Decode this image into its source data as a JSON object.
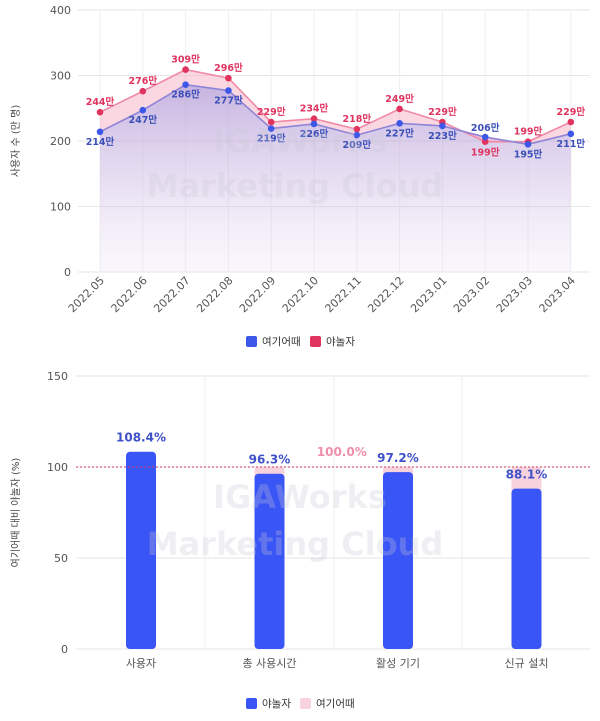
{
  "watermark": {
    "line1": "IGAWorks",
    "line2": "Marketing Cloud"
  },
  "chart_data": [
    {
      "type": "line",
      "ylabel": "사용자 수 (만 명)",
      "ylim": [
        0,
        400
      ],
      "yticks": [
        0,
        100,
        200,
        300,
        400
      ],
      "categories": [
        "2022.05",
        "2022.06",
        "2022.07",
        "2022.08",
        "2022.09",
        "2022.10",
        "2022.11",
        "2022.12",
        "2023.01",
        "2023.02",
        "2023.03",
        "2023.04"
      ],
      "series": [
        {
          "name": "여기어때",
          "color": "#3d57e8",
          "values": [
            214,
            247,
            286,
            277,
            219,
            226,
            209,
            227,
            223,
            206,
            195,
            211
          ],
          "labels": [
            "214만",
            "247만",
            "286만",
            "277만",
            "219만",
            "226만",
            "209만",
            "227만",
            "223만",
            "206만",
            "195만",
            "211만"
          ]
        },
        {
          "name": "야놀자",
          "color": "#e0335e",
          "values": [
            244,
            276,
            309,
            296,
            229,
            234,
            218,
            249,
            229,
            199,
            199,
            229
          ],
          "labels": [
            "244만",
            "276만",
            "309만",
            "296만",
            "229만",
            "234만",
            "218만",
            "249만",
            "229만",
            "199만",
            "199만",
            "229만"
          ]
        }
      ],
      "legend": "bottom"
    },
    {
      "type": "bar",
      "ylabel": "여기어때 대비 야놀자 (%)",
      "ylim": [
        0,
        150
      ],
      "yticks": [
        0,
        50,
        100,
        150
      ],
      "reference_line": 100,
      "categories": [
        "사용자",
        "총 사용시간",
        "활성 기기",
        "신규 설치"
      ],
      "series": [
        {
          "name": "야놀자",
          "color": "#3a55f5",
          "values": [
            108.4,
            96.3,
            97.2,
            88.1
          ],
          "labels": [
            "108.4%",
            "96.3%",
            "97.2%",
            "88.1%"
          ]
        },
        {
          "name": "여기어때",
          "color": "#f8d3dd",
          "values": [
            100,
            100,
            100,
            100
          ],
          "labels": [
            "",
            "",
            "100.0%",
            ""
          ]
        }
      ],
      "legend": "bottom"
    }
  ]
}
